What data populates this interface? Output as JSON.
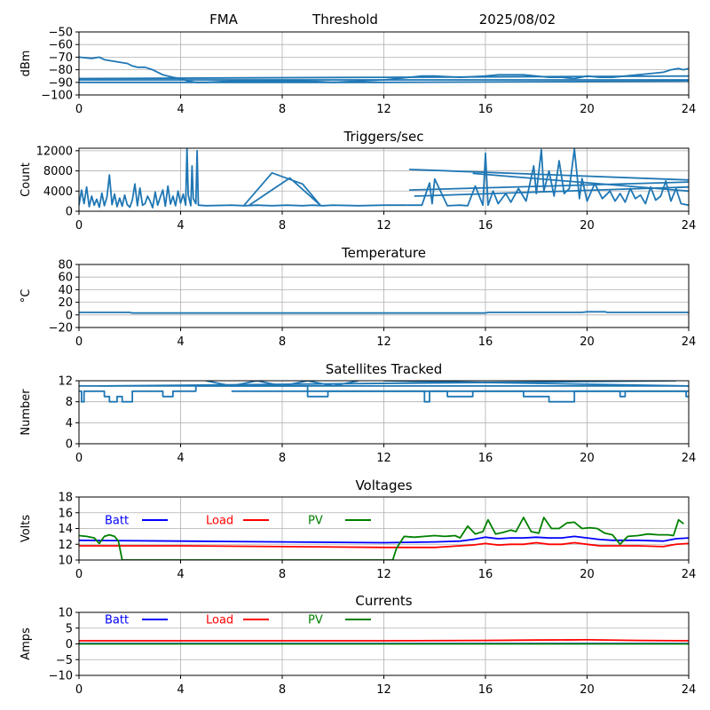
{
  "header": {
    "left": "FMA",
    "center": "Threshold",
    "right": "2025/08/02"
  },
  "colors": {
    "main": "#1f77b4",
    "batt": "#0000ff",
    "load": "#ff0000",
    "pv": "#008000",
    "grid": "#b0b0b0"
  },
  "chart_data": [
    {
      "type": "line",
      "id": "threshold",
      "title": "",
      "ylabel": "dBm",
      "xlim": [
        0,
        24
      ],
      "ylim": [
        -100,
        -50
      ],
      "xticks": [
        "0",
        "4",
        "8",
        "12",
        "16",
        "20",
        "24"
      ],
      "yticks": [
        "−100",
        "−90",
        "−80",
        "−70",
        "−60",
        "−50"
      ],
      "series": [
        {
          "x": [
            0,
            0.5,
            0.8,
            1.0,
            1.3,
            1.6,
            1.9,
            2.1,
            2.3,
            2.6,
            2.9,
            3.1,
            3.3,
            3.5,
            3.7,
            4.0,
            4.3,
            4.6,
            5.0,
            6.0,
            7.0,
            8.0,
            9.0,
            10.0,
            11.0,
            12.0,
            13.0,
            13.5,
            14.0,
            15.0,
            16.0,
            16.5,
            17.0,
            17.5,
            18.0,
            18.5,
            19.0,
            19.5,
            20.0,
            20.5,
            21.0,
            21.5,
            22.0,
            22.5,
            23.0,
            23.3,
            23.6,
            23.8,
            24.0
          ],
          "y": [
            -70,
            -71,
            -70,
            -72,
            -73,
            -74,
            -75,
            -77,
            -78,
            -78,
            -80,
            -82,
            -84,
            -85,
            -86,
            -87,
            -89,
            -90,
            -90,
            -89,
            -89,
            -89,
            -89,
            -90,
            -89,
            -88,
            -86,
            -85,
            -85,
            -86,
            -85,
            -84,
            -84,
            -84,
            -85,
            -86,
            -86,
            -87,
            -85,
            -86,
            -86,
            -85,
            -84,
            -83,
            -82,
            -80,
            -79,
            -80,
            -79
          ]
        },
        {
          "x": [
            24,
            12,
            0
          ],
          "y": [
            -85,
            -86,
            -87
          ]
        },
        {
          "x": [
            0,
            12,
            24
          ],
          "y": [
            -88,
            -88,
            -88
          ]
        },
        {
          "x": [
            24,
            12,
            0
          ],
          "y": [
            -89,
            -90,
            -90
          ]
        }
      ]
    },
    {
      "type": "line",
      "id": "triggers",
      "title": "Triggers/sec",
      "ylabel": "Count",
      "xlim": [
        0,
        24
      ],
      "ylim": [
        0,
        12500
      ],
      "xticks": [
        "0",
        "4",
        "8",
        "12",
        "16",
        "20",
        "24"
      ],
      "yticks": [
        "0",
        "4000",
        "8000",
        "12000"
      ],
      "series": [
        {
          "x": [
            0,
            0.1,
            0.2,
            0.3,
            0.4,
            0.5,
            0.6,
            0.7,
            0.8,
            0.9,
            1.0,
            1.1,
            1.2,
            1.3,
            1.4,
            1.5,
            1.6,
            1.7,
            1.8,
            1.9,
            2.0,
            2.1,
            2.2,
            2.3,
            2.4,
            2.5,
            2.6,
            2.7,
            2.8,
            2.9,
            3.0,
            3.1,
            3.2,
            3.3,
            3.4,
            3.5,
            3.6,
            3.7,
            3.8,
            3.9,
            4.0,
            4.1,
            4.2,
            4.25,
            4.3,
            4.4,
            4.45,
            4.5,
            4.6,
            4.65,
            4.7,
            5.0,
            6.0,
            6.5,
            7.0,
            7.6,
            8.2,
            8.8,
            9.2,
            9.6,
            10.0,
            11.0,
            12.0,
            12.9
          ],
          "y": [
            1200,
            4200,
            1500,
            4800,
            900,
            3000,
            1200,
            2400,
            800,
            3600,
            1100,
            2800,
            7200,
            1300,
            3400,
            900,
            2600,
            1000,
            3200,
            1300,
            800,
            2200,
            5400,
            1100,
            4600,
            1200,
            1500,
            3000,
            2000,
            700,
            3800,
            1200,
            2800,
            4200,
            1000,
            5000,
            1400,
            3000,
            1100,
            4000,
            1600,
            3400,
            1200,
            12500,
            3200,
            1100,
            9000,
            2500,
            1500,
            12000,
            1200,
            1100,
            1200,
            1100,
            1200,
            1100,
            1200,
            1100,
            1200,
            1100,
            1200,
            1100,
            1200,
            1200
          ]
        },
        {
          "x": [
            6.5,
            7.6,
            8.8,
            9.5,
            8.3,
            6.7
          ],
          "y": [
            1200,
            7600,
            5400,
            1200,
            6600,
            1200
          ]
        },
        {
          "x": [
            12.9,
            13.5,
            13.8,
            13.9,
            14.0,
            14.5,
            15.0,
            15.3,
            15.6,
            15.9,
            16.0,
            16.1,
            16.3,
            16.5,
            16.8,
            17.0,
            17.3,
            17.6,
            17.9,
            18.0,
            18.2,
            18.3,
            18.5,
            18.7,
            18.9,
            19.1,
            19.3,
            19.5,
            19.7,
            19.8,
            20.0,
            20.3,
            20.6,
            20.9,
            21.1,
            21.3,
            21.5,
            21.7,
            21.9,
            22.1,
            22.3,
            22.5,
            22.7,
            22.9,
            23.1,
            23.3,
            23.5,
            23.7,
            24.0
          ],
          "y": [
            1200,
            1200,
            5600,
            1500,
            6400,
            1100,
            1200,
            1100,
            5000,
            1200,
            11500,
            1200,
            4000,
            1500,
            3500,
            1800,
            4500,
            2000,
            9000,
            3500,
            12200,
            4000,
            8000,
            3000,
            10000,
            3500,
            4500,
            12300,
            2500,
            6500,
            2000,
            5500,
            2500,
            4000,
            2000,
            3500,
            1800,
            4500,
            2500,
            3200,
            1500,
            4800,
            2200,
            3000,
            6000,
            2000,
            4500,
            1500,
            1200
          ]
        },
        {
          "x": [
            13.0,
            24.0
          ],
          "y": [
            8300,
            6200
          ]
        },
        {
          "x": [
            13.0,
            24.0
          ],
          "y": [
            4200,
            5800
          ]
        },
        {
          "x": [
            15.5,
            24.0
          ],
          "y": [
            7500,
            4000
          ]
        },
        {
          "x": [
            13.2,
            24.0
          ],
          "y": [
            3000,
            4800
          ]
        }
      ]
    },
    {
      "type": "line",
      "id": "temperature",
      "title": "Temperature",
      "ylabel": "°C",
      "xlim": [
        0,
        24
      ],
      "ylim": [
        -20,
        80
      ],
      "xticks": [
        "0",
        "4",
        "8",
        "12",
        "16",
        "20",
        "24"
      ],
      "yticks": [
        "−20",
        "0",
        "20",
        "40",
        "60",
        "80"
      ],
      "series": [
        {
          "x": [
            0,
            2.0,
            2.1,
            8.0,
            12.0,
            16.0,
            16.1,
            19.8,
            20.0,
            20.7,
            20.8,
            24.0
          ],
          "y": [
            4,
            4,
            3,
            3,
            3,
            3,
            4,
            4,
            5,
            5,
            4,
            4
          ]
        }
      ]
    },
    {
      "type": "line",
      "id": "satellites",
      "title": "Satellites Tracked",
      "ylabel": "Number",
      "xlim": [
        0,
        24
      ],
      "ylim": [
        0,
        12
      ],
      "xticks": [
        "0",
        "4",
        "8",
        "12",
        "16",
        "20",
        "24"
      ],
      "yticks": [
        "0",
        "4",
        "8",
        "12"
      ],
      "series": [
        {
          "x": [
            0,
            0.1,
            0.1,
            0.2,
            0.2,
            1.0,
            1.0,
            1.2,
            1.2,
            1.5,
            1.5,
            1.7,
            1.7,
            2.1,
            2.1,
            3.3,
            3.3,
            3.7,
            3.7,
            4.6,
            4.6,
            9.0,
            9.0,
            9.8,
            9.8,
            13.6,
            13.6,
            13.8,
            13.8,
            14.5,
            14.5,
            15.5,
            15.5,
            17.5,
            17.5,
            18.5,
            18.5,
            19.5,
            19.5,
            21.3,
            21.3,
            21.5,
            21.5,
            23.9,
            23.9,
            24.0
          ],
          "y": [
            10,
            10,
            8,
            8,
            10,
            10,
            9,
            9,
            8,
            8,
            9,
            9,
            8,
            8,
            10,
            10,
            9,
            9,
            10,
            10,
            11,
            11,
            9,
            9,
            10,
            10,
            8,
            8,
            10,
            10,
            9,
            9,
            10,
            10,
            9,
            9,
            8,
            8,
            10,
            10,
            9,
            9,
            10,
            10,
            9,
            9
          ]
        },
        {
          "x": [
            0,
            24
          ],
          "y": [
            11,
            11
          ]
        },
        {
          "x": [
            0.8,
            23.5
          ],
          "y": [
            11,
            12
          ]
        },
        {
          "x": [
            12.0,
            24.0
          ],
          "y": [
            12,
            11
          ]
        },
        {
          "x": [
            6.0,
            24.0
          ],
          "y": [
            10,
            10
          ]
        },
        {
          "x": [
            5.0,
            6.0,
            7.0,
            8.0,
            9.0,
            10.0,
            11.0
          ],
          "y": [
            12,
            11,
            12,
            11,
            12,
            11,
            12
          ]
        }
      ]
    },
    {
      "type": "line",
      "id": "voltages",
      "title": "Voltages",
      "ylabel": "Volts",
      "xlim": [
        0,
        24
      ],
      "ylim": [
        10,
        18
      ],
      "xticks": [
        "0",
        "4",
        "8",
        "12",
        "16",
        "20",
        "24"
      ],
      "yticks": [
        "10",
        "12",
        "14",
        "16",
        "18"
      ],
      "legend": [
        "Batt",
        "Load",
        "PV"
      ],
      "series": [
        {
          "name": "Batt",
          "color": "#0000ff",
          "x": [
            0,
            4,
            8,
            12,
            14,
            15,
            15.5,
            16,
            16.5,
            17,
            17.5,
            18,
            18.5,
            19,
            19.5,
            20,
            20.5,
            21,
            22,
            23,
            23.5,
            24
          ],
          "y": [
            12.5,
            12.4,
            12.3,
            12.2,
            12.3,
            12.4,
            12.6,
            12.9,
            12.7,
            12.8,
            12.8,
            12.9,
            12.8,
            12.8,
            13.0,
            12.8,
            12.6,
            12.5,
            12.5,
            12.4,
            12.7,
            12.8
          ]
        },
        {
          "name": "Load",
          "color": "#ff0000",
          "x": [
            0,
            4,
            8,
            12,
            14,
            15,
            15.5,
            16,
            16.5,
            17,
            17.5,
            18,
            18.5,
            19,
            19.5,
            20,
            20.5,
            21,
            22,
            23,
            23.5,
            24
          ],
          "y": [
            11.8,
            11.8,
            11.7,
            11.6,
            11.6,
            11.8,
            11.9,
            12.1,
            11.9,
            12.0,
            12.0,
            12.2,
            12.0,
            12.0,
            12.2,
            12.0,
            11.8,
            11.8,
            11.8,
            11.7,
            12.0,
            12.1
          ]
        },
        {
          "name": "PV",
          "color": "#008000",
          "x": [
            0,
            0.3,
            0.6,
            0.8,
            1.0,
            1.2,
            1.4,
            1.55,
            1.7,
            12.35,
            12.5,
            12.8,
            13.2,
            13.6,
            14.0,
            14.4,
            14.8,
            15.0,
            15.3,
            15.6,
            15.9,
            16.1,
            16.4,
            16.7,
            17.0,
            17.2,
            17.5,
            17.8,
            18.1,
            18.3,
            18.6,
            18.9,
            19.2,
            19.5,
            19.8,
            20.1,
            20.4,
            20.7,
            21.0,
            21.3,
            21.6,
            22.0,
            22.4,
            22.8,
            23.2,
            23.4,
            23.6,
            23.8
          ],
          "y": [
            13.1,
            13.0,
            12.8,
            12.1,
            13.0,
            13.2,
            13.0,
            12.4,
            10.0,
            10.0,
            11.5,
            13.0,
            12.9,
            13.0,
            13.1,
            13.0,
            13.1,
            12.8,
            14.3,
            13.3,
            13.6,
            15.1,
            13.3,
            13.5,
            13.8,
            13.6,
            15.4,
            13.6,
            13.4,
            15.4,
            14.0,
            14.0,
            14.7,
            14.8,
            14.0,
            14.1,
            14.0,
            13.4,
            13.2,
            12.0,
            13.0,
            13.1,
            13.3,
            13.2,
            13.2,
            13.1,
            15.1,
            14.6
          ]
        }
      ]
    },
    {
      "type": "line",
      "id": "currents",
      "title": "Currents",
      "ylabel": "Amps",
      "xlim": [
        0,
        24
      ],
      "ylim": [
        -10,
        10
      ],
      "xticks": [
        "0",
        "4",
        "8",
        "12",
        "16",
        "20",
        "24"
      ],
      "yticks": [
        "−10",
        "−5",
        "0",
        "5",
        "10"
      ],
      "legend": [
        "Batt",
        "Load",
        "PV"
      ],
      "series": [
        {
          "name": "Batt",
          "color": "#0000ff",
          "x": [
            0,
            24
          ],
          "y": [
            0.1,
            0.1
          ]
        },
        {
          "name": "Load",
          "color": "#ff0000",
          "x": [
            0,
            4,
            8,
            12,
            16,
            18,
            20,
            22,
            24
          ],
          "y": [
            1.0,
            1.0,
            1.0,
            1.0,
            1.1,
            1.2,
            1.3,
            1.1,
            1.0
          ]
        },
        {
          "name": "PV",
          "color": "#008000",
          "x": [
            0,
            24
          ],
          "y": [
            0.0,
            0.0
          ]
        }
      ]
    }
  ]
}
